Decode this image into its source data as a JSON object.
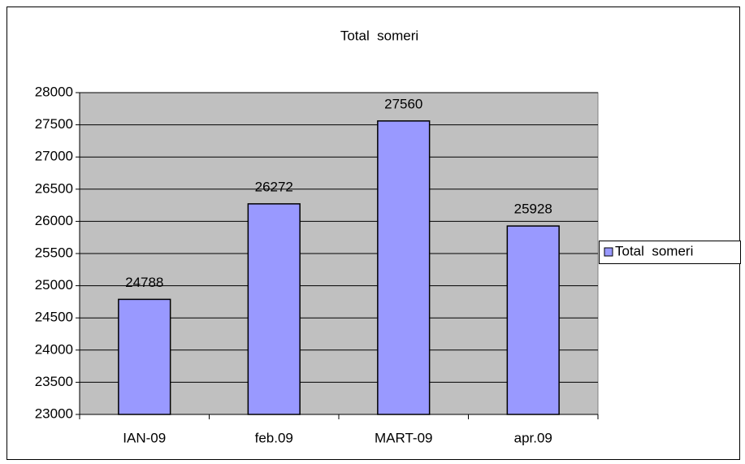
{
  "chart_data": {
    "type": "bar",
    "title": "Total  someri",
    "categories": [
      "IAN-09",
      "feb.09",
      "MART-09",
      "apr.09"
    ],
    "series": [
      {
        "name": "Total  someri",
        "color": "#9999ff",
        "values": [
          24788,
          26272,
          27560,
          25928
        ]
      }
    ],
    "ylim": [
      23000,
      28000
    ],
    "yticks": [
      23000,
      23500,
      24000,
      24500,
      25000,
      25500,
      26000,
      26500,
      27000,
      27500,
      28000
    ],
    "grid": true,
    "legend": "right"
  }
}
